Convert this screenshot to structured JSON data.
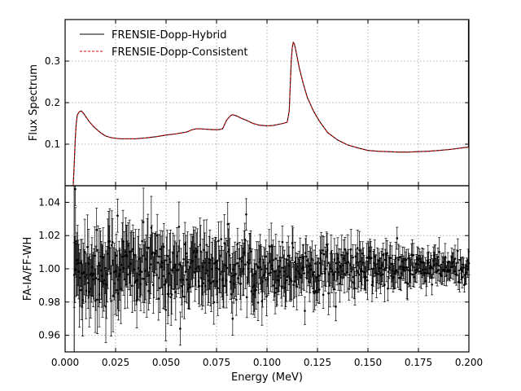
{
  "chart_data": [
    {
      "type": "line",
      "panel": "top",
      "ylabel": "Flux Spectrum",
      "xlim": [
        0.0,
        0.2
      ],
      "ylim": [
        0.0,
        0.4
      ],
      "yticks": [
        0.1,
        0.2,
        0.3
      ],
      "ytick_labels": [
        "0.1",
        "0.2",
        "0.3"
      ],
      "grid": true,
      "legend_position": "top-left",
      "series": [
        {
          "name": "FRENSIE-Dopp-Hybrid",
          "color": "#000000",
          "style": "solid",
          "x": [
            0.004,
            0.0045,
            0.005,
            0.0055,
            0.006,
            0.007,
            0.008,
            0.009,
            0.01,
            0.011,
            0.012,
            0.014,
            0.016,
            0.018,
            0.02,
            0.0225,
            0.025,
            0.0275,
            0.03,
            0.0325,
            0.035,
            0.0375,
            0.04,
            0.045,
            0.05,
            0.055,
            0.06,
            0.063,
            0.065,
            0.067,
            0.07,
            0.073,
            0.076,
            0.078,
            0.08,
            0.082,
            0.083,
            0.085,
            0.087,
            0.09,
            0.093,
            0.096,
            0.1,
            0.103,
            0.106,
            0.108,
            0.11,
            0.111,
            0.112,
            0.1125,
            0.113,
            0.1135,
            0.114,
            0.115,
            0.116,
            0.118,
            0.12,
            0.123,
            0.126,
            0.13,
            0.135,
            0.14,
            0.145,
            0.15,
            0.155,
            0.16,
            0.165,
            0.17,
            0.175,
            0.18,
            0.185,
            0.19,
            0.195,
            0.1998
          ],
          "y": [
            0.0,
            0.05,
            0.11,
            0.15,
            0.17,
            0.178,
            0.18,
            0.175,
            0.168,
            0.161,
            0.154,
            0.143,
            0.134,
            0.126,
            0.12,
            0.116,
            0.114,
            0.113,
            0.113,
            0.113,
            0.113,
            0.114,
            0.115,
            0.118,
            0.122,
            0.125,
            0.129,
            0.135,
            0.137,
            0.137,
            0.136,
            0.135,
            0.135,
            0.137,
            0.158,
            0.169,
            0.171,
            0.168,
            0.163,
            0.157,
            0.15,
            0.146,
            0.144,
            0.145,
            0.148,
            0.15,
            0.153,
            0.18,
            0.3,
            0.332,
            0.345,
            0.342,
            0.332,
            0.308,
            0.283,
            0.245,
            0.212,
            0.18,
            0.155,
            0.128,
            0.11,
            0.098,
            0.091,
            0.085,
            0.083,
            0.082,
            0.081,
            0.081,
            0.082,
            0.083,
            0.085,
            0.087,
            0.09,
            0.093
          ]
        },
        {
          "name": "FRENSIE-Dopp-Consistent",
          "color": "#e00000",
          "style": "dashed"
        }
      ]
    },
    {
      "type": "scatter",
      "panel": "bottom",
      "ylabel": "FA-IA/FF-WH",
      "xlabel": "Energy (MeV)",
      "xlim": [
        0.0,
        0.2
      ],
      "ylim": [
        0.95,
        1.05
      ],
      "xticks": [
        0.0,
        0.025,
        0.05,
        0.075,
        0.1,
        0.125,
        0.15,
        0.175,
        0.2
      ],
      "xtick_labels": [
        "0.000",
        "0.025",
        "0.050",
        "0.075",
        "0.100",
        "0.125",
        "0.150",
        "0.175",
        "0.200"
      ],
      "yticks": [
        0.96,
        0.98,
        1.0,
        1.02,
        1.04
      ],
      "ytick_labels": [
        "0.96",
        "0.98",
        "1.00",
        "1.02",
        "1.04"
      ],
      "grid": true,
      "errorbars": true,
      "color": "#000000",
      "x_range": [
        0.0045,
        0.2
      ],
      "point_count": 600,
      "center": 1.0,
      "scatter_start": 0.02,
      "scatter_end": 0.007,
      "error_start": 0.018,
      "error_end": 0.006,
      "outliers": [
        {
          "x": 0.005,
          "y": 1.048
        },
        {
          "x": 0.0055,
          "y": 1.005
        },
        {
          "x": 0.026,
          "y": 1.032
        },
        {
          "x": 0.057,
          "y": 0.964
        },
        {
          "x": 0.083,
          "y": 0.97
        }
      ]
    }
  ]
}
